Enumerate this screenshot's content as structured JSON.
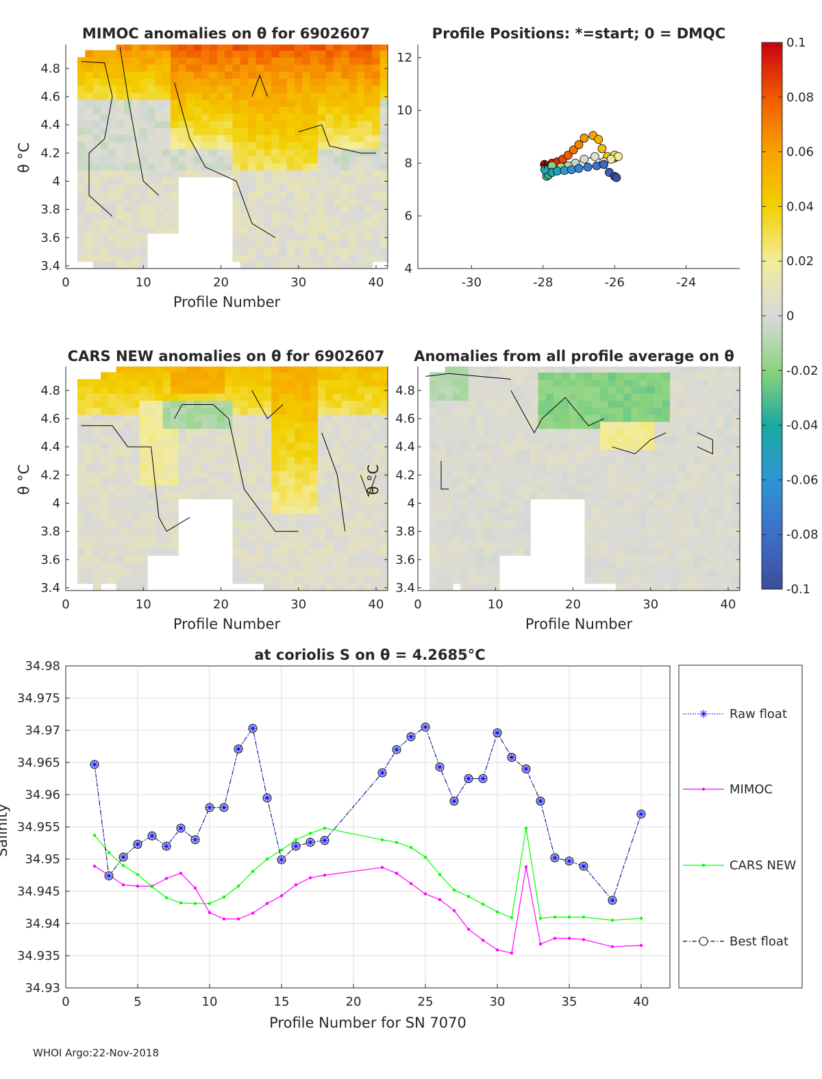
{
  "footer": "WHOI Argo:22-Nov-2018",
  "colorbar": {
    "ticks": [
      "0.1",
      "0.08",
      "0.06",
      "0.04",
      "0.02",
      "0",
      "-0.02",
      "-0.04",
      "-0.06",
      "-0.08",
      "-0.1"
    ],
    "tick_values": [
      0.1,
      0.08,
      0.06,
      0.04,
      0.02,
      0,
      -0.02,
      -0.04,
      -0.06,
      -0.08,
      -0.1
    ],
    "range": [
      -0.1,
      0.1
    ]
  },
  "chart_data": [
    {
      "id": "mimoc",
      "type": "heatmap",
      "title": "MIMOC anomalies on θ  for 6902607",
      "xlabel": "Profile Number",
      "ylabel": "θ °C",
      "xlim": [
        0,
        41.5
      ],
      "ylim": [
        3.38,
        4.97
      ],
      "xticks": [
        "0",
        "10",
        "20",
        "30",
        "40"
      ],
      "yticks": [
        "4.8",
        "4.6",
        "4.4",
        "4.2",
        "4",
        "3.8",
        "3.6",
        "3.4"
      ]
    },
    {
      "id": "positions",
      "type": "scatter",
      "title": "Profile Positions: *=start; 0 = DMQC",
      "xlim": [
        -31.5,
        -22.5
      ],
      "ylim": [
        4,
        12.5
      ],
      "xticks": [
        "-30",
        "-28",
        "-26",
        "-24"
      ],
      "yticks": [
        "12",
        "10",
        "8",
        "6",
        "4"
      ],
      "lon": [
        -27.96,
        -27.75,
        -27.6,
        -27.45,
        -27.3,
        -27.15,
        -27.0,
        -26.85,
        -26.6,
        -26.45,
        -26.35,
        -26.2,
        -26.0,
        -25.95,
        -26.0,
        -25.9,
        -26.1,
        -26.3,
        -26.55,
        -26.85,
        -27.1,
        -27.3,
        -27.5,
        -27.75,
        -27.85,
        -27.9,
        -27.85,
        -27.75,
        -27.95,
        -27.6,
        -27.4,
        -27.2,
        -27.0,
        -26.75,
        -26.5,
        -26.3,
        -26.15,
        -26.0,
        -25.95
      ],
      "lat": [
        7.95,
        8.0,
        8.05,
        8.15,
        8.3,
        8.5,
        8.7,
        8.95,
        9.05,
        8.9,
        8.55,
        8.25,
        8.2,
        8.25,
        8.3,
        8.25,
        8.15,
        8.05,
        8.25,
        8.15,
        8.0,
        7.9,
        7.85,
        7.9,
        7.55,
        7.5,
        7.55,
        7.65,
        7.75,
        7.7,
        7.72,
        7.75,
        7.8,
        7.85,
        7.9,
        7.95,
        7.65,
        7.5,
        7.45
      ]
    },
    {
      "id": "cars",
      "type": "heatmap",
      "title": "CARS NEW anomalies on θ for 6902607",
      "xlabel": "Profile Number",
      "ylabel": "θ °C",
      "xlim": [
        0,
        41.5
      ],
      "ylim": [
        3.38,
        4.97
      ],
      "xticks": [
        "0",
        "10",
        "20",
        "30",
        "40"
      ],
      "yticks": [
        "4.8",
        "4.6",
        "4.4",
        "4.2",
        "4",
        "3.8",
        "3.6",
        "3.4"
      ]
    },
    {
      "id": "avg",
      "type": "heatmap",
      "title": "Anomalies from all profile average on θ",
      "xlabel": "Profile Number",
      "ylabel": "θ °C",
      "xlim": [
        0,
        41.5
      ],
      "ylim": [
        3.38,
        4.97
      ],
      "xticks": [
        "0",
        "10",
        "20",
        "30",
        "40"
      ],
      "yticks": [
        "4.8",
        "4.6",
        "4.4",
        "4.2",
        "4",
        "3.8",
        "3.6",
        "3.4"
      ]
    },
    {
      "id": "salinity",
      "type": "line",
      "title": "at coriolis S on θ = 4.2685°C",
      "xlabel": "Profile Number for SN 7070",
      "ylabel": "Salinity",
      "xlim": [
        0,
        42
      ],
      "ylim": [
        34.93,
        34.98
      ],
      "xticks": [
        "0",
        "5",
        "10",
        "15",
        "20",
        "25",
        "30",
        "35",
        "40"
      ],
      "yticks": [
        "34.98",
        "34.975",
        "34.97",
        "34.965",
        "34.96",
        "34.955",
        "34.95",
        "34.945",
        "34.94",
        "34.935",
        "34.93"
      ],
      "grid": true,
      "legend_position": "right",
      "x": [
        2,
        3,
        4,
        5,
        6,
        7,
        8,
        9,
        10,
        11,
        12,
        13,
        14,
        15,
        16,
        17,
        18,
        22,
        23,
        24,
        25,
        26,
        27,
        28,
        29,
        30,
        31,
        32,
        33,
        34,
        35,
        36,
        38,
        40
      ],
      "series": [
        {
          "name": "Raw float",
          "color": "#0000ff",
          "values": [
            34.9647,
            34.9474,
            34.9503,
            34.9523,
            34.9536,
            34.952,
            34.9548,
            34.953,
            34.958,
            34.958,
            34.9671,
            34.9703,
            34.9595,
            34.9499,
            34.952,
            34.9526,
            34.9529,
            34.9634,
            34.967,
            34.969,
            34.9705,
            34.9643,
            34.959,
            34.9625,
            34.9625,
            34.9696,
            34.9658,
            34.964,
            34.959,
            34.9502,
            34.9497,
            34.9489,
            34.9436,
            34.957
          ]
        },
        {
          "name": "MIMOC",
          "color": "#ff00ff",
          "values": [
            34.9489,
            34.9475,
            34.946,
            34.9458,
            34.9458,
            34.947,
            34.9478,
            34.9455,
            34.9417,
            34.9407,
            34.9407,
            34.9416,
            34.9431,
            34.9443,
            34.946,
            34.9471,
            34.9475,
            34.9487,
            34.9478,
            34.9462,
            34.9446,
            34.9437,
            34.942,
            34.9391,
            34.9374,
            34.9359,
            34.9354,
            34.9488,
            34.9368,
            34.9377,
            34.9377,
            34.9375,
            34.9364,
            34.9366
          ]
        },
        {
          "name": "CARS NEW",
          "color": "#00ff00",
          "values": [
            34.9537,
            34.951,
            34.949,
            34.9476,
            34.9457,
            34.944,
            34.9432,
            34.9431,
            34.9431,
            34.9441,
            34.9458,
            34.9481,
            34.95,
            34.9514,
            34.953,
            34.954,
            34.9548,
            34.953,
            34.9526,
            34.9518,
            34.9503,
            34.9476,
            34.9452,
            34.9442,
            34.943,
            34.9418,
            34.9409,
            34.9548,
            34.9408,
            34.941,
            34.941,
            34.941,
            34.9405,
            34.9408
          ]
        },
        {
          "name": "Best float",
          "color": "#000000",
          "values": [
            34.9647,
            34.9474,
            34.9503,
            34.9523,
            34.9536,
            34.952,
            34.9548,
            34.953,
            34.958,
            34.958,
            34.9671,
            34.9703,
            34.9595,
            34.9499,
            34.952,
            34.9526,
            34.9529,
            34.9634,
            34.967,
            34.969,
            34.9705,
            34.9643,
            34.959,
            34.9625,
            34.9625,
            34.9696,
            34.9658,
            34.964,
            34.959,
            34.9502,
            34.9497,
            34.9489,
            34.9436,
            34.957
          ]
        }
      ]
    }
  ]
}
